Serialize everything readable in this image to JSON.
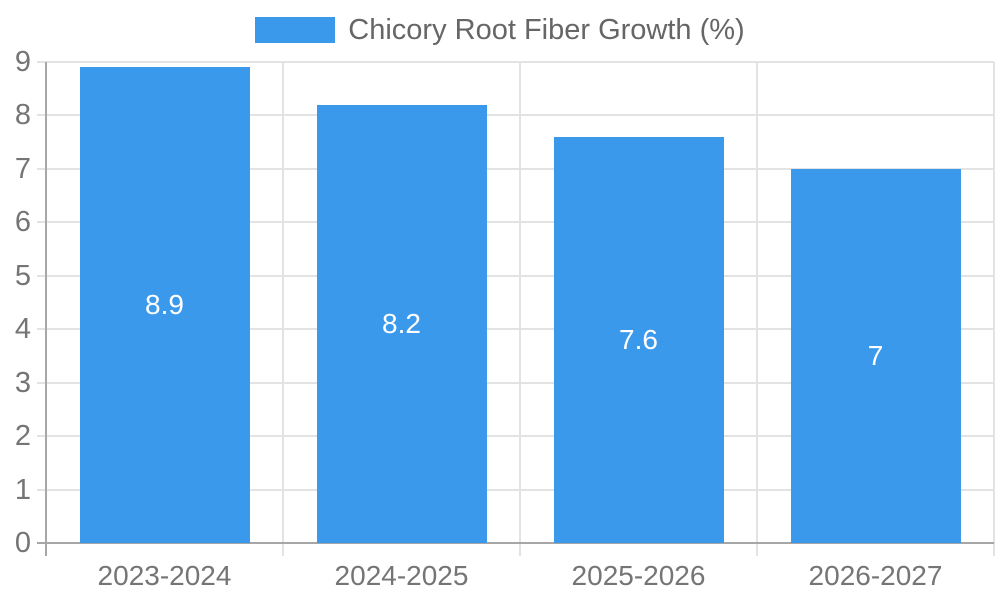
{
  "chart_data": {
    "type": "bar",
    "title": "",
    "categories": [
      "2023-2024",
      "2024-2025",
      "2025-2026",
      "2026-2027"
    ],
    "series": [
      {
        "name": "Chicory Root Fiber Growth (%)",
        "values": [
          8.9,
          8.2,
          7.6,
          7
        ]
      }
    ],
    "value_labels": [
      "8.9",
      "8.2",
      "7.6",
      "7"
    ],
    "value_label_position": "inside-center",
    "xlabel": "",
    "ylabel": "",
    "ylim": [
      0,
      9
    ],
    "y_ticks": [
      0,
      1,
      2,
      3,
      4,
      5,
      6,
      7,
      8,
      9
    ],
    "grid": true,
    "legend": {
      "position": "top-center",
      "entries": [
        "Chicory Root Fiber Growth (%)"
      ]
    },
    "colors": {
      "bar": "#3B99EC",
      "value_label": "#FFFFFF",
      "grid": "#E3E3E3",
      "axis": "#A6A6A6",
      "tick_text": "#757575",
      "legend_text": "#666666",
      "background": "#FFFFFF"
    }
  }
}
